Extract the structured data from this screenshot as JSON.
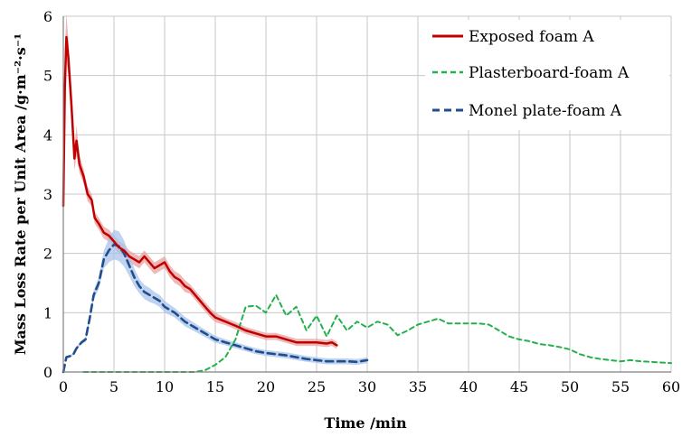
{
  "chart_data": {
    "type": "line",
    "xlabel": "Time /min",
    "ylabel": "Mass Loss Rate per Unit Area /g·m⁻²·s⁻¹",
    "xlim": [
      0,
      60
    ],
    "ylim": [
      0,
      6
    ],
    "xticks": [
      0,
      5,
      10,
      15,
      20,
      25,
      30,
      35,
      40,
      45,
      50,
      55,
      60
    ],
    "yticks": [
      0,
      1,
      2,
      3,
      4,
      5,
      6
    ],
    "grid": true,
    "legend_position": "top-right",
    "series": [
      {
        "name": "Exposed foam A",
        "color": "#c00000",
        "dash": "solid",
        "band_color": "#e8a0a0",
        "points": [
          [
            0,
            2.8
          ],
          [
            0.15,
            4.8
          ],
          [
            0.3,
            5.65
          ],
          [
            0.5,
            5.3
          ],
          [
            0.8,
            4.5
          ],
          [
            1.1,
            3.6
          ],
          [
            1.3,
            3.9
          ],
          [
            1.6,
            3.5
          ],
          [
            2.0,
            3.3
          ],
          [
            2.4,
            3.0
          ],
          [
            2.8,
            2.9
          ],
          [
            3.1,
            2.6
          ],
          [
            3.5,
            2.5
          ],
          [
            4.0,
            2.35
          ],
          [
            4.5,
            2.3
          ],
          [
            5.0,
            2.2
          ],
          [
            5.5,
            2.1
          ],
          [
            6.0,
            2.05
          ],
          [
            6.5,
            1.95
          ],
          [
            7.0,
            1.9
          ],
          [
            7.5,
            1.85
          ],
          [
            8.0,
            1.95
          ],
          [
            8.5,
            1.85
          ],
          [
            9.0,
            1.75
          ],
          [
            9.5,
            1.8
          ],
          [
            10.0,
            1.85
          ],
          [
            10.5,
            1.7
          ],
          [
            11.0,
            1.6
          ],
          [
            11.5,
            1.55
          ],
          [
            12.0,
            1.45
          ],
          [
            12.5,
            1.4
          ],
          [
            13.0,
            1.3
          ],
          [
            13.5,
            1.2
          ],
          [
            14.0,
            1.1
          ],
          [
            14.5,
            1.0
          ],
          [
            15.0,
            0.92
          ],
          [
            16.0,
            0.85
          ],
          [
            17.0,
            0.78
          ],
          [
            18.0,
            0.7
          ],
          [
            19.0,
            0.65
          ],
          [
            20.0,
            0.6
          ],
          [
            21.0,
            0.6
          ],
          [
            22.0,
            0.55
          ],
          [
            23.0,
            0.5
          ],
          [
            24.0,
            0.5
          ],
          [
            25.0,
            0.5
          ],
          [
            26.0,
            0.48
          ],
          [
            26.5,
            0.5
          ],
          [
            27.0,
            0.45
          ]
        ],
        "band": [
          0.25,
          0.6,
          0.4,
          0.3,
          0.25,
          0.2,
          0.25,
          0.15,
          0.12,
          0.12,
          0.1,
          0.1,
          0.1,
          0.1,
          0.1,
          0.1,
          0.1,
          0.1,
          0.1,
          0.1,
          0.1,
          0.1,
          0.1,
          0.1,
          0.1,
          0.1,
          0.1,
          0.1,
          0.1,
          0.1,
          0.08,
          0.08,
          0.08,
          0.08,
          0.08,
          0.08,
          0.06,
          0.06,
          0.06,
          0.06,
          0.06,
          0.06,
          0.06,
          0.06,
          0.06,
          0.06,
          0.06,
          0.06,
          0.06
        ]
      },
      {
        "name": "Plasterboard-foam A",
        "color": "#22b14c",
        "dash": "dashed",
        "points": [
          [
            2,
            0.0
          ],
          [
            5,
            0.0
          ],
          [
            10,
            0.0
          ],
          [
            13,
            0.0
          ],
          [
            14,
            0.03
          ],
          [
            15,
            0.12
          ],
          [
            16,
            0.25
          ],
          [
            17,
            0.55
          ],
          [
            18,
            1.1
          ],
          [
            19,
            1.12
          ],
          [
            20,
            1.0
          ],
          [
            21,
            1.3
          ],
          [
            22,
            0.95
          ],
          [
            23,
            1.1
          ],
          [
            24,
            0.7
          ],
          [
            25,
            0.95
          ],
          [
            26,
            0.6
          ],
          [
            27,
            0.95
          ],
          [
            28,
            0.7
          ],
          [
            29,
            0.85
          ],
          [
            30,
            0.75
          ],
          [
            31,
            0.85
          ],
          [
            32,
            0.8
          ],
          [
            33,
            0.62
          ],
          [
            34,
            0.7
          ],
          [
            35,
            0.8
          ],
          [
            36,
            0.85
          ],
          [
            37,
            0.9
          ],
          [
            38,
            0.82
          ],
          [
            39,
            0.82
          ],
          [
            40,
            0.82
          ],
          [
            41,
            0.82
          ],
          [
            42,
            0.8
          ],
          [
            43,
            0.7
          ],
          [
            44,
            0.6
          ],
          [
            45,
            0.55
          ],
          [
            46,
            0.52
          ],
          [
            47,
            0.47
          ],
          [
            48,
            0.45
          ],
          [
            49,
            0.42
          ],
          [
            50,
            0.38
          ],
          [
            51,
            0.3
          ],
          [
            52,
            0.25
          ],
          [
            53,
            0.22
          ],
          [
            54,
            0.2
          ],
          [
            55,
            0.18
          ],
          [
            56,
            0.2
          ],
          [
            57,
            0.18
          ],
          [
            58,
            0.17
          ],
          [
            59,
            0.16
          ],
          [
            60,
            0.15
          ]
        ]
      },
      {
        "name": "Monel plate-foam A",
        "color": "#1f4e8c",
        "dash": "dashed",
        "band_color": "#a9c3ea",
        "points": [
          [
            0,
            0.0
          ],
          [
            0.3,
            0.25
          ],
          [
            0.7,
            0.27
          ],
          [
            1.0,
            0.3
          ],
          [
            1.3,
            0.4
          ],
          [
            1.8,
            0.5
          ],
          [
            2.2,
            0.55
          ],
          [
            2.6,
            0.9
          ],
          [
            3.0,
            1.3
          ],
          [
            3.5,
            1.5
          ],
          [
            4.0,
            1.9
          ],
          [
            4.5,
            2.05
          ],
          [
            5.0,
            2.15
          ],
          [
            5.5,
            2.12
          ],
          [
            6.0,
            2.0
          ],
          [
            6.5,
            1.8
          ],
          [
            7.0,
            1.6
          ],
          [
            7.5,
            1.45
          ],
          [
            8.0,
            1.35
          ],
          [
            8.5,
            1.3
          ],
          [
            9.0,
            1.25
          ],
          [
            9.5,
            1.2
          ],
          [
            10.0,
            1.1
          ],
          [
            11.0,
            1.0
          ],
          [
            12.0,
            0.85
          ],
          [
            13.0,
            0.75
          ],
          [
            14.0,
            0.65
          ],
          [
            15.0,
            0.55
          ],
          [
            16.0,
            0.5
          ],
          [
            17.0,
            0.45
          ],
          [
            18.0,
            0.4
          ],
          [
            19.0,
            0.35
          ],
          [
            20.0,
            0.32
          ],
          [
            21.0,
            0.3
          ],
          [
            22.0,
            0.28
          ],
          [
            23.0,
            0.25
          ],
          [
            24.0,
            0.22
          ],
          [
            25.0,
            0.2
          ],
          [
            26.0,
            0.18
          ],
          [
            27.0,
            0.18
          ],
          [
            28.0,
            0.18
          ],
          [
            29.0,
            0.17
          ],
          [
            30.0,
            0.2
          ]
        ],
        "band": [
          0,
          0.02,
          0.02,
          0.02,
          0.03,
          0.03,
          0.04,
          0.05,
          0.08,
          0.1,
          0.15,
          0.2,
          0.25,
          0.25,
          0.22,
          0.18,
          0.15,
          0.12,
          0.12,
          0.12,
          0.1,
          0.1,
          0.1,
          0.08,
          0.08,
          0.07,
          0.06,
          0.06,
          0.05,
          0.05,
          0.05,
          0.05,
          0.05,
          0.05,
          0.05,
          0.05,
          0.05,
          0.05,
          0.05,
          0.05,
          0.05,
          0.05,
          0.05
        ]
      }
    ]
  }
}
